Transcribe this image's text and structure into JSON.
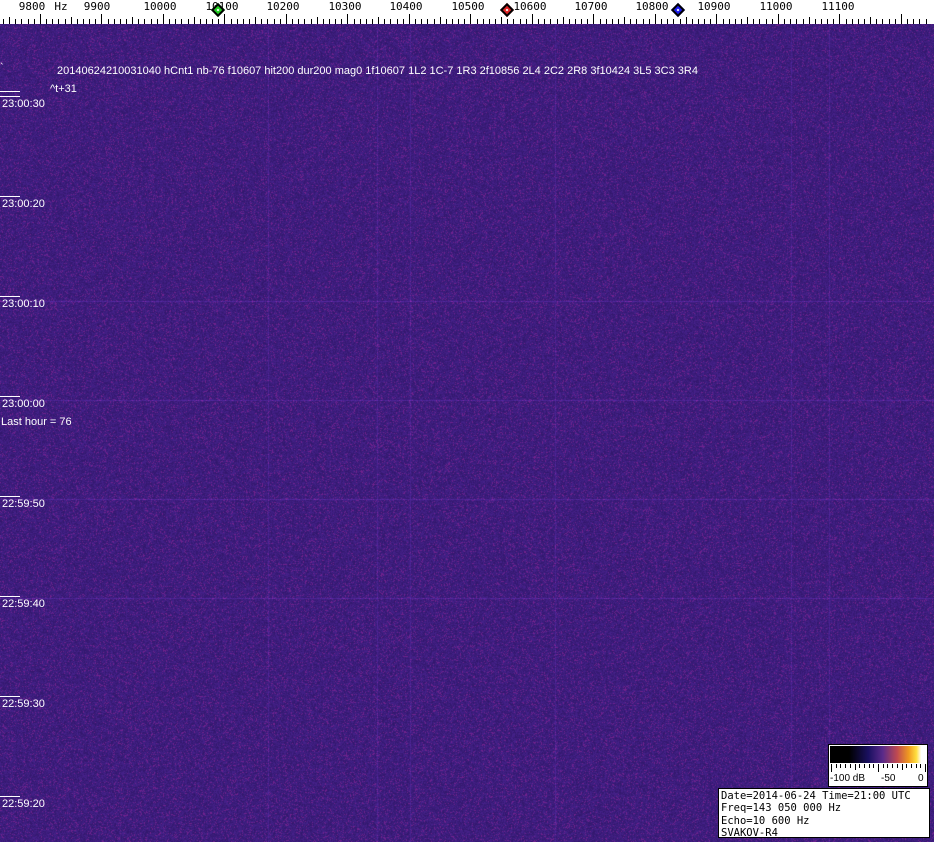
{
  "frequency_scale": {
    "unit_label": "Hz",
    "ticks": [
      "9800",
      "9900",
      "10000",
      "10100",
      "10200",
      "10300",
      "10400",
      "10500",
      "10600",
      "10700",
      "10800",
      "10900",
      "11000",
      "11100"
    ],
    "markers": [
      {
        "name": "green-marker",
        "frequency": 10100,
        "color": "#22cc22"
      },
      {
        "name": "red-marker",
        "frequency": 10575,
        "color": "#dd2222"
      },
      {
        "name": "blue-marker",
        "frequency": 10830,
        "color": "#1a1aee"
      }
    ]
  },
  "waterfall": {
    "background_color": "#2a1a6e",
    "detection_line": "20140624210031040 hCnt1 nb-76 f10607 hit200 dur200 mag0 1f10607 1L2 1C-7 1R3 2f10856 2L4 2C2 2R8 3f10424 3L5 3C3 3R4",
    "offset_label": "^t+31",
    "last_hour": "Last hour = 76",
    "time_labels": [
      "23:00:30",
      "23:00:20",
      "23:00:10",
      "23:00:00",
      "22:59:50",
      "22:59:40",
      "22:59:30",
      "22:59:20"
    ]
  },
  "color_bar": {
    "labels": [
      "-100 dB",
      "-50",
      "0"
    ]
  },
  "info_box": {
    "date_time": "Date=2014-06-24 Time=21:00 UTC",
    "freq": "Freq=143 050 000 Hz",
    "echo": "Echo=10 600 Hz",
    "station": "SVAKOV-R4"
  }
}
